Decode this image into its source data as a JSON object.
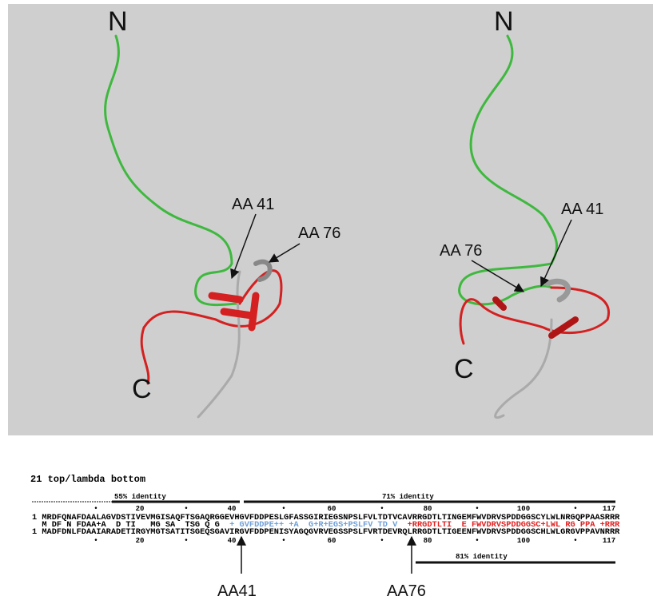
{
  "panels": [
    {
      "n_label": "N",
      "c_label": "C",
      "aa41": "AA 41",
      "aa76": "AA 76"
    },
    {
      "n_label": "N",
      "c_label": "C",
      "aa41": "AA 41",
      "aa76": "AA 76"
    }
  ],
  "alignment": {
    "title": "21 top/lambda bottom",
    "identity_top_left": "55% identity",
    "identity_top_right": "71% identity",
    "identity_bottom": "81% identity",
    "ruler_top": [
      "•",
      "20",
      "•",
      "40",
      "•",
      "60",
      "•",
      "80",
      "•",
      "100",
      "•",
      "117"
    ],
    "ruler_bottom": [
      "•",
      "20",
      "•",
      "40",
      "•",
      "60",
      "•",
      "80",
      "•",
      "100",
      "•",
      "117"
    ],
    "top_sequence": "1 MRDFQNAFDAALAGVDSTIVEVMGISAQFTSGAQRGGEVHGVFDDPESLGFASSGIRIEGSNPSLFVLTDTVCAVRRGDTLTINGEMFWVDRVSPDDGGSCYLWLNRGQPPAASRRR",
    "consensus": [
      "  M DF N FDAA+A  D TI   MG SA  TSG Q G  ",
      "+ GVFDDPE++ +A  G+R+EGS+PSLFV TD V  ",
      "+RRGDTLTI  E FWVDRVSPDDGGSC+LWL RG PPA +RRR"
    ],
    "bottom_sequence": "1 MADFDNLFDAAIARADETIRGYMGTSATITSGEQSGAVIRGVFDDPENISYAGQGVRVEGSSPSLFVRTDEVRQLRRGDTLTIGEENFWVDRVSPDDGGSCHLWLGRGVPPAVNRRR",
    "arrow_41": "AA41",
    "arrow_76": "AA76"
  }
}
